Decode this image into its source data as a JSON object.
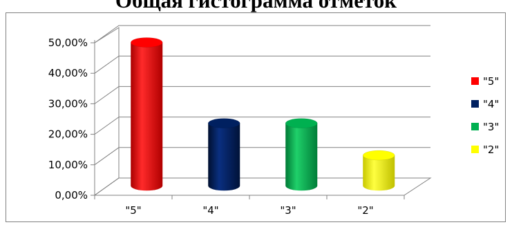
{
  "chart_data": {
    "type": "bar",
    "title": "Общая гистограмма отметок",
    "xlabel": "",
    "ylabel": "",
    "categories": [
      "\"5\"",
      "\"4\"",
      "\"3\"",
      "\"2\""
    ],
    "values": [
      47,
      20.5,
      20.5,
      10
    ],
    "ylim": [
      0,
      50
    ],
    "yticks": [
      "0,00%",
      "10,00%",
      "20,00%",
      "30,00%",
      "40,00%",
      "50,00%"
    ],
    "grid": true,
    "legend": {
      "placement": "right",
      "entries": [
        "\"5\"",
        "\"4\"",
        "\"3\"",
        "\"2\""
      ]
    },
    "colors": [
      "#ff0000",
      "#002060",
      "#00b050",
      "#ffff00"
    ]
  }
}
